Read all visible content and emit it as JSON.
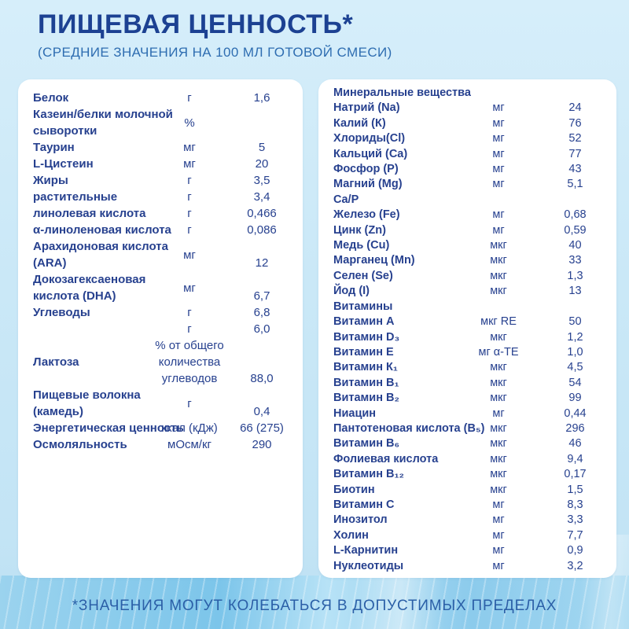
{
  "header": {
    "title": "ПИЩЕВАЯ ЦЕННОСТЬ*",
    "subtitle": "(СРЕДНИЕ ЗНАЧЕНИЯ НА 100 МЛ ГОТОВОЙ СМЕСИ)"
  },
  "footer": {
    "note": "*ЗНАЧЕНИЯ МОГУТ КОЛЕБАТЬСЯ В ДОПУСТИМЫХ ПРЕДЕЛАХ"
  },
  "colors": {
    "title_text": "#1c4192",
    "subtitle_text": "#2e6db1",
    "table_text": "#27418f",
    "footer_text": "#2b5fa7",
    "panel_background": "#ffffff",
    "page_background": "#cae8f7",
    "bottom_band": "#8ccbec"
  },
  "panels": {
    "left": {
      "rows": [
        {
          "name": "Белок",
          "unit": "г",
          "value": "1,6"
        },
        {
          "name": "Казеин/белки молочной\nсыворотки",
          "unit": "%",
          "value": ""
        },
        {
          "name": "Таурин",
          "unit": "мг",
          "value": "5"
        },
        {
          "name": "L-Цистеин",
          "unit": "мг",
          "value": "20"
        },
        {
          "name": "Жиры",
          "unit": "г",
          "value": "3,5"
        },
        {
          "name": "растительные",
          "unit": "г",
          "value": "3,4"
        },
        {
          "name": "линолевая кислота",
          "unit": "г",
          "value": "0,466"
        },
        {
          "name": "α-линоленовая кислота",
          "unit": "г",
          "value": "0,086"
        },
        {
          "name": "Арахидоновая кислота\n(ARA)",
          "unit": "мг",
          "value": "\n12"
        },
        {
          "name": "Докозагексаеновая\nкислота (DHA)",
          "unit": "мг",
          "value": "\n6,7"
        },
        {
          "name": "Углеводы",
          "unit": "г",
          "value": "6,8"
        },
        {
          "name": "",
          "unit": "г",
          "value": "6,0"
        },
        {
          "name": "Лактоза",
          "unit": "% от общего\nколичества\nуглеводов",
          "value": "\n\n88,0"
        },
        {
          "name": "Пищевые волокна\n(камедь)",
          "unit": "г",
          "value": "\n0,4"
        },
        {
          "name": "Энергетическая ценность",
          "unit": "ккал (кДж)",
          "value": "66 (275)"
        },
        {
          "name": "Осмоляльность",
          "unit": "мОсм/кг",
          "value": "290"
        }
      ]
    },
    "right": {
      "rows": [
        {
          "name": "Минеральные вещества",
          "unit": "",
          "value": ""
        },
        {
          "name": "Натрий (Na)",
          "unit": "мг",
          "value": "24"
        },
        {
          "name": "Калий (К)",
          "unit": "мг",
          "value": "76"
        },
        {
          "name": "Хлориды(Cl)",
          "unit": "мг",
          "value": "52"
        },
        {
          "name": "Кальций (Ca)",
          "unit": "мг",
          "value": "77"
        },
        {
          "name": "Фосфор (P)",
          "unit": "мг",
          "value": "43"
        },
        {
          "name": "Магний (Mg)",
          "unit": "мг",
          "value": "5,1"
        },
        {
          "name": "Ca/P",
          "unit": "",
          "value": ""
        },
        {
          "name": "Железо (Fe)",
          "unit": "мг",
          "value": "0,68"
        },
        {
          "name": "Цинк (Zn)",
          "unit": "мг",
          "value": "0,59"
        },
        {
          "name": "Медь (Cu)",
          "unit": "мкг",
          "value": "40"
        },
        {
          "name": "Марганец (Mn)",
          "unit": "мкг",
          "value": "33"
        },
        {
          "name": "Селен (Se)",
          "unit": "мкг",
          "value": "1,3"
        },
        {
          "name": "Йод (I)",
          "unit": "мкг",
          "value": "13"
        },
        {
          "name": "Витамины",
          "unit": "",
          "value": ""
        },
        {
          "name": "Витамин А",
          "unit": "мкг RE",
          "value": "50"
        },
        {
          "name": "Витамин D₃",
          "unit": "мкг",
          "value": "1,2"
        },
        {
          "name": "Витамин Е",
          "unit": "мг α-TE",
          "value": "1,0"
        },
        {
          "name": "Витамин К₁",
          "unit": "мкг",
          "value": "4,5"
        },
        {
          "name": "Витамин В₁",
          "unit": "мкг",
          "value": "54"
        },
        {
          "name": "Витамин В₂",
          "unit": "мкг",
          "value": "99"
        },
        {
          "name": "Ниацин",
          "unit": "мг",
          "value": "0,44"
        },
        {
          "name": "Пантотеновая кислота (В₅)",
          "unit": "мкг",
          "value": "296"
        },
        {
          "name": "Витамин В₆",
          "unit": "мкг",
          "value": "46"
        },
        {
          "name": "Фолиевая кислота",
          "unit": "мкг",
          "value": "9,4"
        },
        {
          "name": "Витамин В₁₂",
          "unit": "мкг",
          "value": "0,17"
        },
        {
          "name": "Биотин",
          "unit": "мкг",
          "value": "1,5"
        },
        {
          "name": "Витамин С",
          "unit": "мг",
          "value": "8,3"
        },
        {
          "name": "Инозитол",
          "unit": "мг",
          "value": "3,3"
        },
        {
          "name": "Холин",
          "unit": "мг",
          "value": "7,7"
        },
        {
          "name": "L-Карнитин",
          "unit": "мг",
          "value": "0,9"
        },
        {
          "name": "Нуклеотиды",
          "unit": "мг",
          "value": "3,2"
        }
      ]
    }
  }
}
